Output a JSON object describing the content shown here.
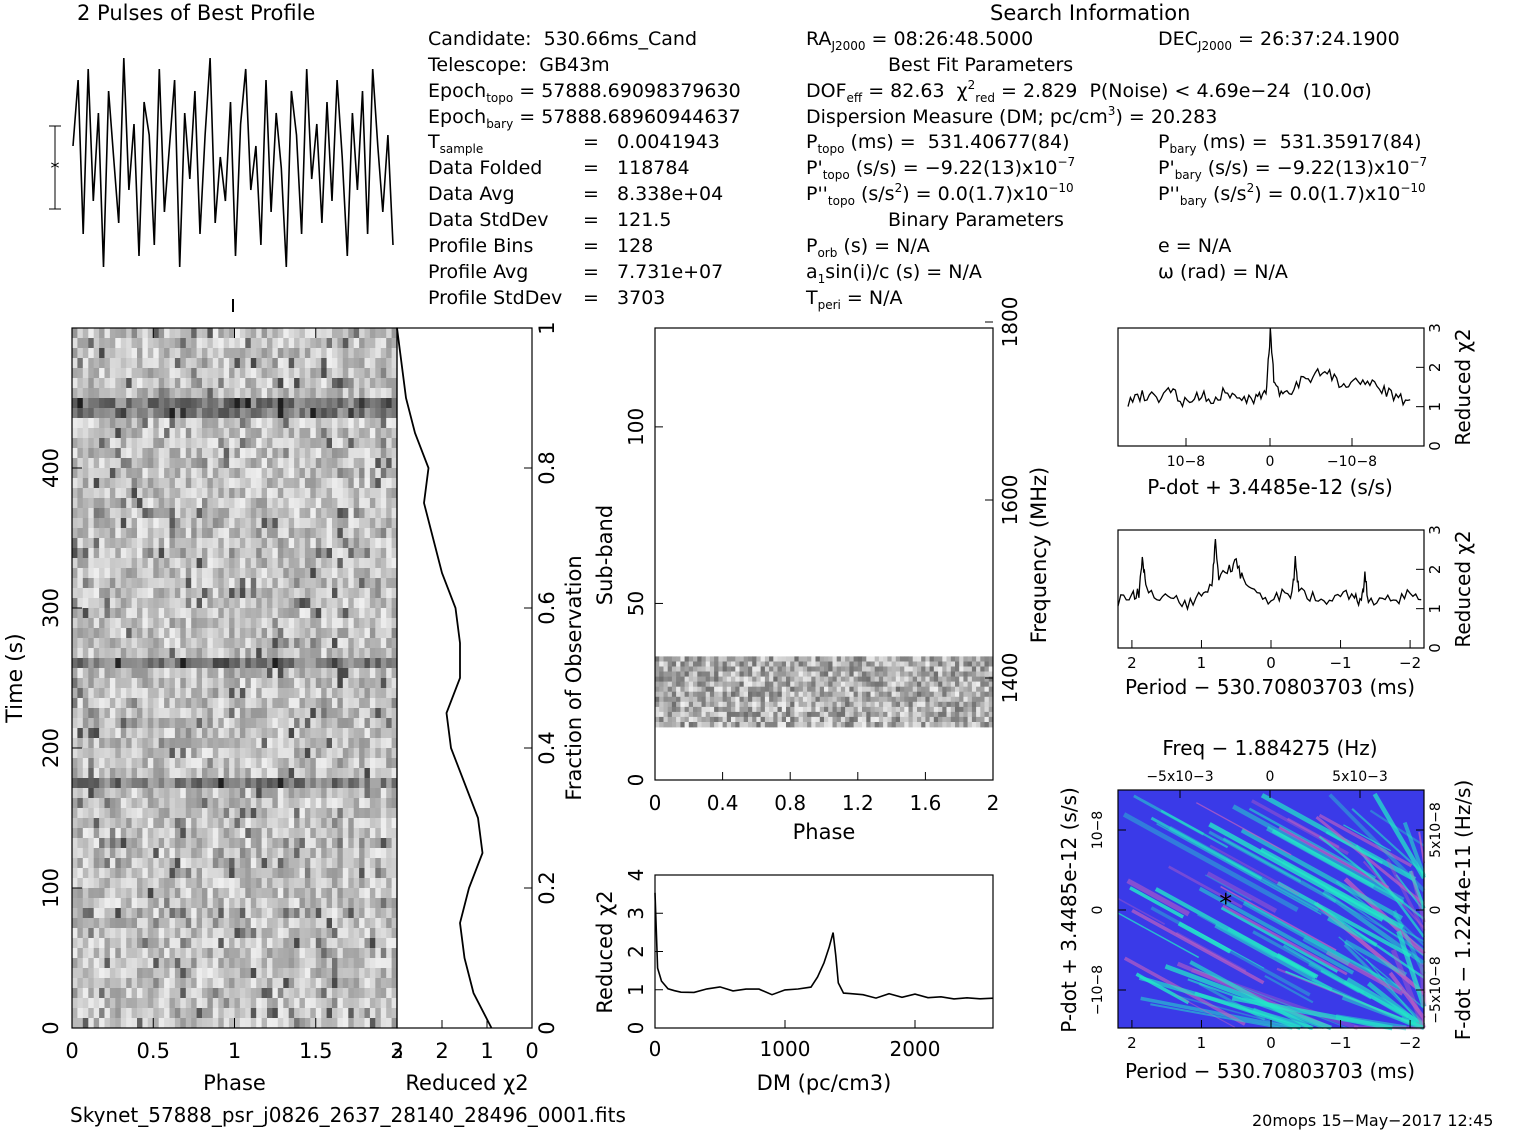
{
  "header": {
    "best_profile_title": "2 Pulses of Best Profile",
    "search_info_title": "Search Information",
    "best_fit_title": "Best Fit Parameters",
    "binary_title": "Binary Parameters"
  },
  "candidate_info": {
    "candidate": "530.66ms_Cand",
    "telescope": "GB43m",
    "epoch_topo": "57888.69098379630",
    "epoch_bary": "57888.68960944637",
    "t_sample": "0.0041943",
    "data_folded": "118784",
    "data_avg": "8.338e+04",
    "data_stddev": "121.5",
    "profile_bins": "128",
    "profile_avg": "7.731e+07",
    "profile_stddev": "3703"
  },
  "search_info": {
    "ra": "08:26:48.5000",
    "dec": "26:37:24.1900",
    "dof_eff": "82.63",
    "chi2_red": "2.829",
    "p_noise": "4.69e−24",
    "sigma": "(10.0σ)",
    "dm": "20.283",
    "p_topo": "531.40677(84)",
    "p_bary": "531.35917(84)",
    "pd_topo": "−9.22(13)x10",
    "pd_bary": "−9.22(13)x10",
    "pd_exp": "−7",
    "pdd_topo": "0.0(1.7)x10",
    "pdd_bary": "0.0(1.7)x10",
    "pdd_exp": "−10",
    "p_orb": "N/A",
    "a1sini": "N/A",
    "t_peri": "N/A",
    "e": "N/A",
    "omega": "N/A"
  },
  "footer": {
    "filename": "Skynet_57888_psr_j0826_2637_28140_28496_0001.fits",
    "stamp": "20mops 15−May−2017 12:45"
  },
  "colors": {
    "line": "#000000",
    "ppdot_low": "#3a3ae8",
    "ppdot_high": "#22e8c8",
    "ppdot_hot": "#c060c0"
  },
  "chart_data": [
    {
      "id": "profile",
      "type": "line",
      "title": "2 Pulses of Best Profile",
      "xlabel": "",
      "ylabel": "",
      "xlim": [
        0,
        2
      ],
      "note_values": "noisy profile, no distinct pulse; values in arbitrary units",
      "y": [
        0.2,
        0.8,
        -0.6,
        0.9,
        -0.3,
        0.5,
        -0.9,
        0.7,
        0.1,
        -0.5,
        1.0,
        -0.2,
        0.4,
        -0.8,
        0.6,
        0.3,
        -0.7,
        0.9,
        -0.4,
        0.2,
        0.8,
        -0.9,
        0.5,
        -0.1,
        0.7,
        -0.6,
        0.3,
        1.0,
        -0.5,
        0.1,
        -0.3,
        0.6,
        -0.8,
        0.4,
        0.9,
        -0.2,
        0.2,
        -0.7,
        0.8,
        -0.4,
        0.5,
        0.0,
        -0.9,
        0.7,
        0.3,
        -0.6,
        0.9,
        -0.1,
        0.4,
        -0.5,
        0.6,
        -0.3,
        0.8,
        0.1,
        -0.8,
        0.5,
        -0.2,
        0.7,
        -0.6,
        0.9,
        0.2,
        -0.4,
        0.3,
        -0.7
      ]
    },
    {
      "id": "time_phase",
      "type": "heatmap",
      "xlabel": "Phase",
      "ylabel": "Time (s)",
      "xlim": [
        0,
        2
      ],
      "ylim": [
        0,
        500
      ],
      "xticks": [
        "0",
        "0.5",
        "1",
        "1.5",
        "2"
      ],
      "yticks": [
        "0",
        "100",
        "200",
        "300",
        "400"
      ],
      "y2label": "Fraction of Observation",
      "y2ticks": [
        "0",
        "0.2",
        "0.4",
        "0.6",
        "0.8",
        "1"
      ]
    },
    {
      "id": "time_chi2",
      "type": "line",
      "xlabel": "Reduced χ2",
      "xlim": [
        3,
        0
      ],
      "xticks": [
        "3",
        "2",
        "1",
        "0"
      ],
      "fraction": [
        0.0,
        0.05,
        0.1,
        0.15,
        0.2,
        0.25,
        0.3,
        0.35,
        0.4,
        0.45,
        0.5,
        0.55,
        0.6,
        0.65,
        0.7,
        0.75,
        0.8,
        0.85,
        0.9,
        0.95,
        1.0
      ],
      "chi2": [
        0.9,
        1.3,
        1.5,
        1.6,
        1.4,
        1.1,
        1.2,
        1.5,
        1.8,
        1.9,
        1.6,
        1.6,
        1.7,
        2.0,
        2.2,
        2.4,
        2.3,
        2.6,
        2.8,
        2.9,
        3.0
      ]
    },
    {
      "id": "subband_phase",
      "type": "heatmap",
      "xlabel": "Phase",
      "ylabel": "Sub-band",
      "y2label": "Frequency (MHz)",
      "xlim": [
        0,
        2
      ],
      "ylim": [
        0,
        128
      ],
      "xticks": [
        "0",
        "0.4",
        "0.8",
        "1.2",
        "1.6",
        "2"
      ],
      "yticks": [
        "0",
        "50",
        "100"
      ],
      "y2ticks": [
        "1400",
        "1600",
        "1800"
      ],
      "occupied_subbands": [
        15,
        35
      ]
    },
    {
      "id": "dm_chi2",
      "type": "line",
      "xlabel": "DM (pc/cm3)",
      "ylabel": "Reduced χ2",
      "xlim": [
        0,
        2600
      ],
      "ylim": [
        0,
        4
      ],
      "xticks": [
        "0",
        "1000",
        "2000"
      ],
      "yticks": [
        "0",
        "1",
        "2",
        "3",
        "4"
      ],
      "x": [
        0,
        20,
        50,
        100,
        150,
        200,
        300,
        400,
        500,
        600,
        700,
        800,
        900,
        1000,
        1100,
        1200,
        1250,
        1300,
        1340,
        1370,
        1390,
        1410,
        1450,
        1500,
        1600,
        1700,
        1800,
        1900,
        2000,
        2100,
        2200,
        2300,
        2400,
        2500,
        2600
      ],
      "y": [
        3.5,
        1.6,
        1.2,
        1.0,
        0.95,
        0.9,
        0.95,
        1.0,
        1.05,
        0.95,
        1.0,
        1.05,
        0.9,
        1.0,
        1.0,
        1.1,
        1.3,
        1.7,
        2.1,
        2.5,
        1.9,
        1.2,
        0.95,
        0.9,
        0.85,
        0.8,
        0.9,
        0.8,
        0.85,
        0.8,
        0.85,
        0.8,
        0.75,
        0.8,
        0.8
      ]
    },
    {
      "id": "pdot_chi2",
      "type": "line",
      "xlabel": "P-dot + 3.4485e-12 (s/s)",
      "ylabel": "Reduced χ2",
      "ylim": [
        0,
        3
      ],
      "xticks": [
        "10−8",
        "0",
        "−10−8"
      ],
      "yticks": [
        "0",
        "1",
        "2",
        "3"
      ],
      "x": [
        -10,
        -9,
        -8,
        -7,
        -6,
        -5,
        -4,
        -3,
        -2,
        -1,
        -0.3,
        0,
        0.3,
        1,
        2,
        3,
        4,
        5,
        6,
        7,
        8,
        9,
        10
      ],
      "y": [
        1.1,
        1.3,
        1.2,
        1.4,
        1.1,
        1.3,
        1.2,
        1.4,
        1.1,
        1.2,
        1.3,
        2.9,
        1.5,
        1.3,
        1.6,
        1.8,
        1.9,
        1.5,
        1.7,
        1.6,
        1.4,
        1.2,
        1.1
      ]
    },
    {
      "id": "period_chi2",
      "type": "line",
      "xlabel": "Period − 530.70803703 (ms)",
      "ylabel": "Reduced χ2",
      "xlim": [
        2.2,
        -2.2
      ],
      "ylim": [
        0,
        3
      ],
      "xticks": [
        "2",
        "1",
        "0",
        "−1",
        "−2"
      ],
      "yticks": [
        "0",
        "1",
        "2",
        "3"
      ],
      "x": [
        2.2,
        2.0,
        1.9,
        1.85,
        1.8,
        1.6,
        1.4,
        1.2,
        1.0,
        0.85,
        0.8,
        0.75,
        0.6,
        0.5,
        0.4,
        0.2,
        0.0,
        -0.2,
        -0.3,
        -0.35,
        -0.4,
        -0.6,
        -0.8,
        -1.0,
        -1.2,
        -1.3,
        -1.35,
        -1.4,
        -1.6,
        -1.8,
        -2.0,
        -2.2
      ],
      "y": [
        1.2,
        1.3,
        1.4,
        2.3,
        1.5,
        1.2,
        1.3,
        1.1,
        1.4,
        1.6,
        2.8,
        1.8,
        2.0,
        2.2,
        1.7,
        1.3,
        1.2,
        1.4,
        1.3,
        2.2,
        1.5,
        1.3,
        1.2,
        1.4,
        1.3,
        1.1,
        1.9,
        1.2,
        1.3,
        1.2,
        1.4,
        1.3
      ]
    },
    {
      "id": "ppdot_plane",
      "type": "heatmap",
      "xlabel": "Period − 530.70803703 (ms)",
      "ylabel": "P-dot + 3.4485e-12 (s/s)",
      "x2label": "Freq − 1.884275 (Hz)",
      "y2label": "F-dot − 1.2244e-11 (Hz/s)",
      "xticks": [
        "2",
        "1",
        "0",
        "−1",
        "−2"
      ],
      "x2ticks": [
        "−5x10−3",
        "0",
        "5x10−3"
      ],
      "yticks": [
        "10−8",
        "0",
        "−10−8"
      ],
      "y2ticks": [
        "−5x10−8",
        "0",
        "5x10−8"
      ],
      "best_fit_marker": [
        0.65,
        0
      ]
    }
  ]
}
